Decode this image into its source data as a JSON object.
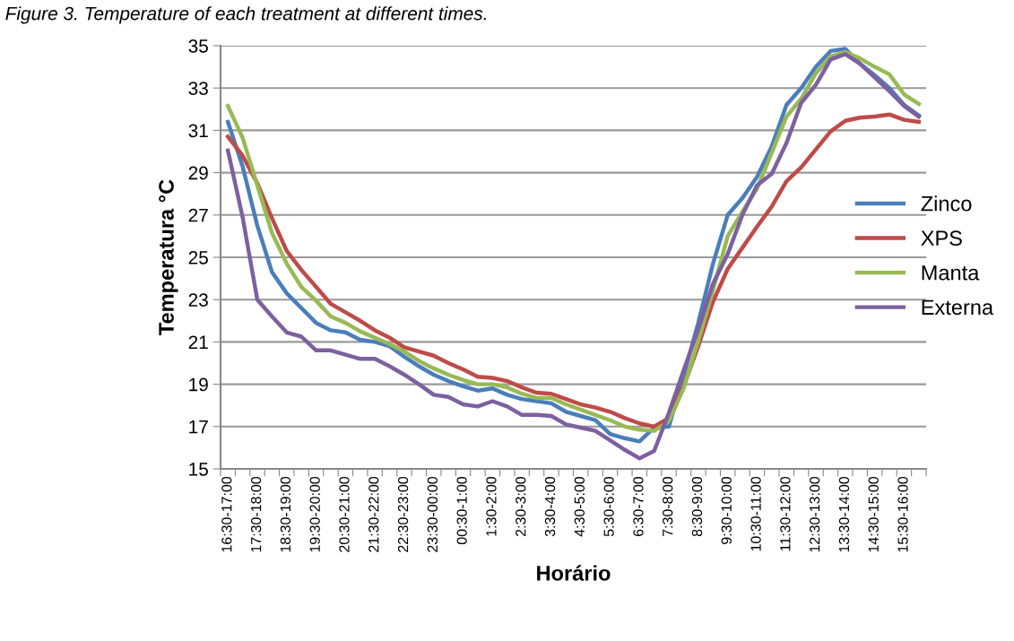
{
  "chart_data": {
    "type": "line",
    "title": "Figure 3. Temperature of each treatment at different times.",
    "xlabel": "Horário",
    "ylabel": "Temperatura °C",
    "categories": [
      "16:30-17:00",
      null,
      "17:30-18:00",
      null,
      "18:30-19:00",
      null,
      "19:30-20:00",
      null,
      "20:30-21:00",
      null,
      "21:30-22:00",
      null,
      "22:30-23:00",
      null,
      "23:30-00:00",
      null,
      "00:30-1:00",
      null,
      "1:30-2:00",
      null,
      "2:30-3:00",
      null,
      "3:30-4:00",
      null,
      "4:30-5:00",
      null,
      "5:30-6:00",
      null,
      "6:30-7:00",
      null,
      "7:30-8:00",
      null,
      "8:30-9:00",
      null,
      "9:30-10:00",
      null,
      "10:30-11:00",
      null,
      "11:30-12:00",
      null,
      "12:30-13:00",
      null,
      "13:30-14:00",
      null,
      "14:30-15:00",
      null,
      "15:30-16:00",
      null
    ],
    "series": [
      {
        "name": "Zinco",
        "color": "#4a7ebb",
        "values": [
          31.4,
          29.3,
          26.5,
          24.3,
          23.3,
          22.6,
          21.9,
          21.55,
          21.45,
          21.1,
          21.0,
          20.8,
          20.3,
          19.85,
          19.45,
          19.15,
          18.9,
          18.7,
          18.8,
          18.5,
          18.3,
          18.2,
          18.1,
          17.7,
          17.5,
          17.3,
          16.65,
          16.45,
          16.3,
          16.95,
          17.0,
          19.4,
          21.9,
          24.7,
          27.0,
          27.8,
          28.8,
          30.25,
          32.2,
          33.0,
          34.0,
          34.75,
          34.85,
          34.15,
          33.6,
          33.0,
          32.2,
          31.7
        ]
      },
      {
        "name": "XPS",
        "color": "#be4b48",
        "values": [
          30.7,
          29.8,
          28.5,
          26.85,
          25.3,
          24.4,
          23.6,
          22.8,
          22.4,
          22.0,
          21.55,
          21.2,
          20.75,
          20.55,
          20.35,
          20.0,
          19.7,
          19.35,
          19.3,
          19.15,
          18.85,
          18.6,
          18.55,
          18.3,
          18.05,
          17.9,
          17.7,
          17.4,
          17.15,
          17.0,
          17.4,
          18.9,
          20.8,
          22.9,
          24.45,
          25.45,
          26.45,
          27.4,
          28.6,
          29.25,
          30.1,
          30.95,
          31.45,
          31.6,
          31.65,
          31.75,
          31.5,
          31.4
        ]
      },
      {
        "name": "Manta",
        "color": "#98b954",
        "values": [
          32.15,
          30.65,
          28.4,
          26.15,
          24.7,
          23.6,
          22.95,
          22.2,
          21.9,
          21.5,
          21.2,
          20.9,
          20.55,
          20.1,
          19.75,
          19.45,
          19.2,
          19.0,
          19.0,
          18.85,
          18.55,
          18.35,
          18.35,
          18.05,
          17.8,
          17.55,
          17.3,
          17.0,
          16.85,
          16.8,
          17.25,
          18.8,
          21.05,
          23.45,
          26.0,
          27.15,
          28.25,
          29.95,
          31.65,
          32.5,
          33.7,
          34.5,
          34.7,
          34.4,
          34.0,
          33.65,
          32.7,
          32.25
        ]
      },
      {
        "name": "Externa",
        "color": "#7d60a0",
        "values": [
          30.05,
          26.9,
          23.0,
          22.2,
          21.45,
          21.25,
          20.6,
          20.6,
          20.4,
          20.2,
          20.2,
          19.85,
          19.45,
          19.0,
          18.5,
          18.4,
          18.05,
          17.95,
          18.2,
          17.95,
          17.55,
          17.55,
          17.5,
          17.1,
          16.95,
          16.8,
          16.35,
          15.9,
          15.5,
          15.85,
          17.65,
          19.65,
          21.6,
          23.75,
          25.15,
          27.0,
          28.4,
          28.95,
          30.4,
          32.3,
          33.15,
          34.35,
          34.6,
          34.15,
          33.5,
          32.85,
          32.15,
          31.65
        ]
      }
    ],
    "ylim": [
      15,
      35
    ],
    "yticks": [
      15,
      17,
      19,
      21,
      23,
      25,
      27,
      29,
      31,
      33,
      35
    ],
    "grid": "y",
    "legend": "right",
    "marker": "none",
    "line_style": "solid"
  }
}
